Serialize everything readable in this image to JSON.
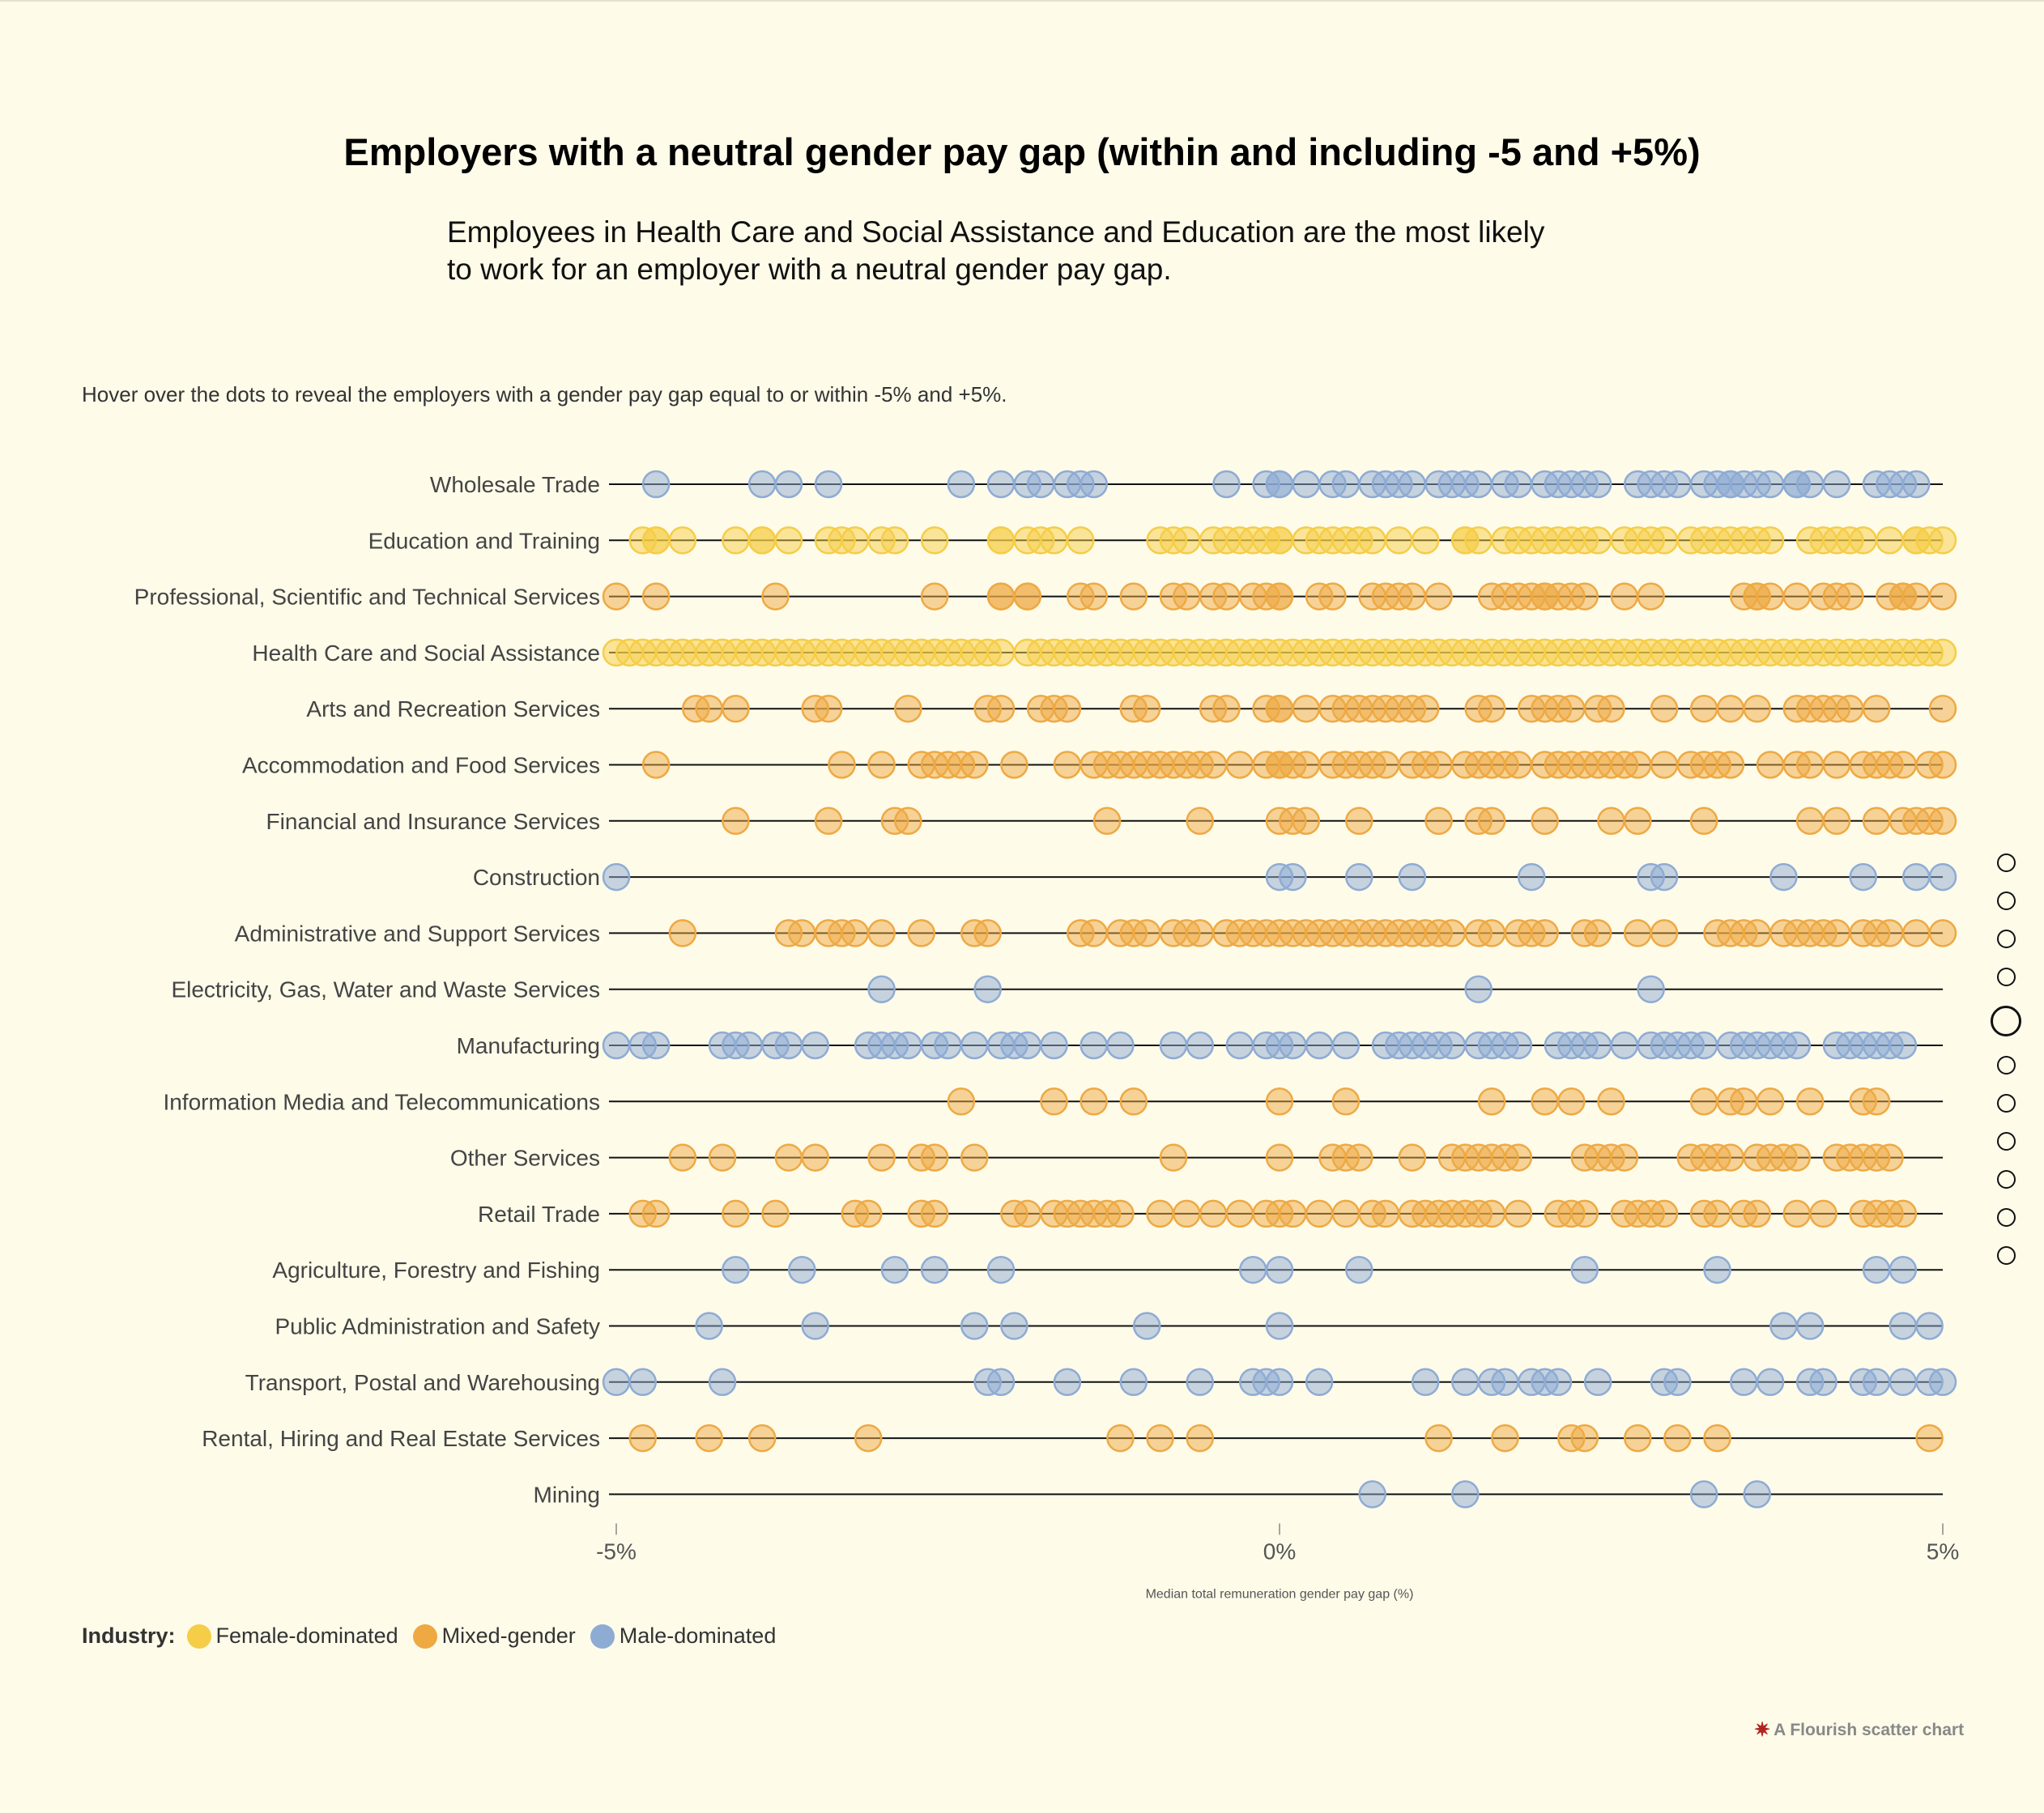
{
  "header": {
    "title": "Employers with a neutral gender pay gap (within and including -5 and +5%)",
    "subtitle_line1": "Employees in Health Care and Social Assistance and Education are the most likely",
    "subtitle_line2": "to work for an employer with a neutral gender pay gap.",
    "note": "Hover over the dots to reveal the employers with a gender pay gap equal to or within -5% and +5%."
  },
  "legend": {
    "title": "Industry:",
    "items": [
      {
        "label": "Female-dominated",
        "color": "#f5cd47"
      },
      {
        "label": "Mixed-gender",
        "color": "#eea943"
      },
      {
        "label": "Male-dominated",
        "color": "#8eabd4"
      }
    ]
  },
  "credit": {
    "icon": "flourish-logo-icon",
    "text": "A Flourish scatter chart"
  },
  "story_nav": {
    "count": 11,
    "active_index": 4
  },
  "chart_data": {
    "type": "scatter",
    "title": "Employers with a neutral gender pay gap (within and including -5 and +5%)",
    "xlabel": "Median total remuneration gender pay gap (%)",
    "ylabel": "",
    "xlim": [
      -5,
      5
    ],
    "xticks": [
      {
        "value": -5,
        "label": "-5%"
      },
      {
        "value": 0,
        "label": "0%"
      },
      {
        "value": 5,
        "label": "5%"
      }
    ],
    "grid": false,
    "legend_position": "bottom-left",
    "colors": {
      "Female-dominated": "#f5cd47",
      "Mixed-gender": "#eea943",
      "Male-dominated": "#8eabd4"
    },
    "rows": [
      {
        "industry": "Wholesale Trade",
        "group": "Male-dominated",
        "values": [
          -4.7,
          -3.9,
          -3.7,
          -3.4,
          -2.4,
          -2.1,
          -1.9,
          -1.8,
          -1.6,
          -1.5,
          -1.4,
          -0.4,
          -0.1,
          0.0,
          0.0,
          0.2,
          0.4,
          0.5,
          0.7,
          0.8,
          0.9,
          1.0,
          1.2,
          1.3,
          1.4,
          1.5,
          1.7,
          1.8,
          2.0,
          2.1,
          2.2,
          2.3,
          2.4,
          2.7,
          2.8,
          2.9,
          3.0,
          3.2,
          3.3,
          3.4,
          3.4,
          3.5,
          3.6,
          3.7,
          3.9,
          3.9,
          4.0,
          4.2,
          4.5,
          4.6,
          4.7,
          4.8
        ]
      },
      {
        "industry": "Education and Training",
        "group": "Female-dominated",
        "values": [
          -4.8,
          -4.7,
          -4.7,
          -4.5,
          -4.1,
          -3.9,
          -3.9,
          -3.7,
          -3.4,
          -3.3,
          -3.2,
          -3.0,
          -2.9,
          -2.6,
          -2.1,
          -2.1,
          -1.9,
          -1.8,
          -1.7,
          -1.5,
          -0.9,
          -0.8,
          -0.7,
          -0.5,
          -0.4,
          -0.3,
          -0.2,
          -0.1,
          0.0,
          0.0,
          0.2,
          0.3,
          0.4,
          0.5,
          0.6,
          0.7,
          0.9,
          1.1,
          1.4,
          1.4,
          1.5,
          1.7,
          1.8,
          1.9,
          2.0,
          2.1,
          2.2,
          2.3,
          2.4,
          2.6,
          2.7,
          2.8,
          2.9,
          3.1,
          3.2,
          3.3,
          3.4,
          3.5,
          3.6,
          3.7,
          4.0,
          4.1,
          4.2,
          4.3,
          4.4,
          4.6,
          4.8,
          4.8,
          4.9,
          5.0
        ]
      },
      {
        "industry": "Professional, Scientific and Technical Services",
        "group": "Mixed-gender",
        "values": [
          -5.0,
          -4.7,
          -3.8,
          -2.6,
          -2.1,
          -2.1,
          -1.9,
          -1.9,
          -1.5,
          -1.4,
          -1.1,
          -0.8,
          -0.7,
          -0.5,
          -0.4,
          -0.2,
          -0.1,
          0.0,
          0.0,
          0.3,
          0.4,
          0.7,
          0.8,
          0.9,
          1.0,
          1.2,
          1.6,
          1.7,
          1.8,
          1.9,
          2.0,
          2.0,
          2.1,
          2.2,
          2.3,
          2.6,
          2.8,
          3.5,
          3.6,
          3.6,
          3.7,
          3.9,
          4.1,
          4.2,
          4.3,
          4.6,
          4.7,
          4.7,
          4.8,
          5.0
        ]
      },
      {
        "industry": "Health Care and Social Assistance",
        "group": "Female-dominated",
        "values": [
          -5.0,
          -4.9,
          -4.8,
          -4.7,
          -4.6,
          -4.5,
          -4.4,
          -4.3,
          -4.2,
          -4.1,
          -4.0,
          -3.9,
          -3.8,
          -3.7,
          -3.6,
          -3.5,
          -3.4,
          -3.3,
          -3.2,
          -3.1,
          -3.0,
          -2.9,
          -2.8,
          -2.7,
          -2.6,
          -2.5,
          -2.4,
          -2.3,
          -2.2,
          -2.1,
          -1.9,
          -1.8,
          -1.7,
          -1.6,
          -1.5,
          -1.4,
          -1.3,
          -1.2,
          -1.1,
          -1.0,
          -0.9,
          -0.8,
          -0.7,
          -0.6,
          -0.5,
          -0.4,
          -0.3,
          -0.2,
          -0.1,
          0.0,
          0.1,
          0.2,
          0.3,
          0.4,
          0.5,
          0.6,
          0.7,
          0.8,
          0.9,
          1.0,
          1.1,
          1.2,
          1.3,
          1.4,
          1.5,
          1.6,
          1.7,
          1.8,
          1.9,
          2.0,
          2.1,
          2.2,
          2.3,
          2.4,
          2.5,
          2.6,
          2.7,
          2.8,
          2.9,
          3.0,
          3.1,
          3.2,
          3.3,
          3.4,
          3.5,
          3.6,
          3.7,
          3.8,
          3.9,
          4.0,
          4.1,
          4.2,
          4.3,
          4.4,
          4.5,
          4.6,
          4.7,
          4.8,
          4.9,
          5.0
        ]
      },
      {
        "industry": "Arts and Recreation Services",
        "group": "Mixed-gender",
        "values": [
          -4.4,
          -4.3,
          -4.1,
          -3.5,
          -3.4,
          -2.8,
          -2.2,
          -2.1,
          -1.8,
          -1.7,
          -1.6,
          -1.1,
          -1.0,
          -0.5,
          -0.4,
          -0.1,
          0.0,
          0.0,
          0.2,
          0.4,
          0.5,
          0.6,
          0.7,
          0.8,
          0.9,
          1.0,
          1.1,
          1.5,
          1.6,
          1.9,
          2.0,
          2.1,
          2.2,
          2.4,
          2.5,
          2.9,
          3.2,
          3.4,
          3.6,
          3.9,
          4.0,
          4.1,
          4.2,
          4.3,
          4.5,
          5.0
        ]
      },
      {
        "industry": "Accommodation and Food Services",
        "group": "Mixed-gender",
        "values": [
          -4.7,
          -3.3,
          -3.0,
          -2.7,
          -2.6,
          -2.5,
          -2.4,
          -2.3,
          -2.0,
          -1.6,
          -1.4,
          -1.3,
          -1.2,
          -1.1,
          -1.0,
          -0.9,
          -0.8,
          -0.7,
          -0.6,
          -0.5,
          -0.3,
          -0.1,
          0.0,
          0.0,
          0.1,
          0.2,
          0.4,
          0.5,
          0.6,
          0.7,
          0.8,
          1.0,
          1.1,
          1.2,
          1.4,
          1.5,
          1.6,
          1.7,
          1.8,
          2.0,
          2.1,
          2.2,
          2.3,
          2.4,
          2.5,
          2.6,
          2.7,
          2.9,
          3.1,
          3.2,
          3.3,
          3.4,
          3.7,
          3.9,
          4.0,
          4.2,
          4.4,
          4.5,
          4.6,
          4.7,
          4.9,
          5.0
        ]
      },
      {
        "industry": "Financial and Insurance Services",
        "group": "Mixed-gender",
        "values": [
          -4.1,
          -3.4,
          -2.9,
          -2.8,
          -1.3,
          -0.6,
          0.0,
          0.1,
          0.2,
          0.6,
          1.2,
          1.5,
          1.6,
          2.0,
          2.5,
          2.7,
          3.2,
          4.0,
          4.2,
          4.5,
          4.7,
          4.8,
          4.9,
          5.0
        ]
      },
      {
        "industry": "Construction",
        "group": "Male-dominated",
        "values": [
          -5.0,
          0.0,
          0.1,
          0.6,
          1.0,
          1.9,
          2.8,
          2.9,
          3.8,
          4.4,
          4.8,
          5.0
        ]
      },
      {
        "industry": "Administrative and Support Services",
        "group": "Mixed-gender",
        "values": [
          -4.5,
          -3.7,
          -3.6,
          -3.4,
          -3.3,
          -3.2,
          -3.0,
          -2.7,
          -2.3,
          -2.2,
          -1.5,
          -1.4,
          -1.2,
          -1.1,
          -1.0,
          -0.8,
          -0.7,
          -0.6,
          -0.4,
          -0.3,
          -0.2,
          -0.1,
          0.0,
          0.1,
          0.2,
          0.3,
          0.4,
          0.5,
          0.6,
          0.7,
          0.8,
          0.9,
          1.0,
          1.1,
          1.2,
          1.3,
          1.5,
          1.6,
          1.8,
          1.9,
          2.0,
          2.3,
          2.4,
          2.7,
          2.9,
          3.3,
          3.4,
          3.5,
          3.6,
          3.8,
          3.9,
          4.0,
          4.1,
          4.2,
          4.4,
          4.5,
          4.6,
          4.8,
          5.0
        ]
      },
      {
        "industry": "Electricity, Gas, Water and Waste Services",
        "group": "Male-dominated",
        "values": [
          -3.0,
          -2.2,
          1.5,
          2.8
        ]
      },
      {
        "industry": "Manufacturing",
        "group": "Male-dominated",
        "values": [
          -5.0,
          -4.8,
          -4.7,
          -4.2,
          -4.1,
          -4.0,
          -3.8,
          -3.7,
          -3.5,
          -3.1,
          -3.0,
          -2.9,
          -2.8,
          -2.6,
          -2.5,
          -2.3,
          -2.1,
          -2.0,
          -1.9,
          -1.7,
          -1.4,
          -1.2,
          -0.8,
          -0.6,
          -0.3,
          -0.1,
          0.0,
          0.1,
          0.3,
          0.5,
          0.8,
          0.9,
          1.0,
          1.1,
          1.2,
          1.3,
          1.5,
          1.6,
          1.7,
          1.8,
          2.1,
          2.2,
          2.3,
          2.4,
          2.6,
          2.8,
          2.9,
          3.0,
          3.1,
          3.2,
          3.4,
          3.5,
          3.6,
          3.7,
          3.8,
          3.9,
          4.2,
          4.3,
          4.4,
          4.5,
          4.6,
          4.7
        ]
      },
      {
        "industry": "Information Media and Telecommunications",
        "group": "Mixed-gender",
        "values": [
          -2.4,
          -1.7,
          -1.4,
          -1.1,
          0.0,
          0.5,
          1.6,
          2.0,
          2.2,
          2.5,
          3.2,
          3.4,
          3.5,
          3.7,
          4.0,
          4.4,
          4.5
        ]
      },
      {
        "industry": "Other Services",
        "group": "Mixed-gender",
        "values": [
          -4.5,
          -4.2,
          -3.7,
          -3.5,
          -3.0,
          -2.7,
          -2.6,
          -2.3,
          -0.8,
          0.0,
          0.4,
          0.5,
          0.6,
          1.0,
          1.3,
          1.4,
          1.5,
          1.6,
          1.7,
          1.8,
          2.3,
          2.4,
          2.5,
          2.6,
          3.1,
          3.2,
          3.3,
          3.4,
          3.6,
          3.7,
          3.8,
          3.9,
          4.2,
          4.3,
          4.4,
          4.5,
          4.6
        ]
      },
      {
        "industry": "Retail Trade",
        "group": "Mixed-gender",
        "values": [
          -4.8,
          -4.7,
          -4.1,
          -3.8,
          -3.2,
          -3.1,
          -2.7,
          -2.6,
          -2.0,
          -1.9,
          -1.7,
          -1.6,
          -1.5,
          -1.4,
          -1.3,
          -1.2,
          -0.9,
          -0.7,
          -0.5,
          -0.3,
          -0.1,
          0.0,
          0.1,
          0.3,
          0.5,
          0.7,
          0.8,
          1.0,
          1.1,
          1.2,
          1.3,
          1.4,
          1.5,
          1.6,
          1.8,
          2.1,
          2.2,
          2.3,
          2.6,
          2.7,
          2.8,
          2.9,
          3.2,
          3.3,
          3.5,
          3.6,
          3.9,
          4.1,
          4.4,
          4.5,
          4.6,
          4.7
        ]
      },
      {
        "industry": "Agriculture, Forestry and Fishing",
        "group": "Male-dominated",
        "values": [
          -4.1,
          -3.6,
          -2.9,
          -2.6,
          -2.1,
          -0.2,
          0.0,
          0.6,
          2.3,
          3.3,
          4.5,
          4.7
        ]
      },
      {
        "industry": "Public Administration and Safety",
        "group": "Male-dominated",
        "values": [
          -4.3,
          -3.5,
          -2.3,
          -2.0,
          -1.0,
          0.0,
          3.8,
          4.0,
          4.7,
          4.9
        ]
      },
      {
        "industry": "Transport, Postal and Warehousing",
        "group": "Male-dominated",
        "values": [
          -5.0,
          -4.8,
          -4.2,
          -2.2,
          -2.1,
          -1.6,
          -1.1,
          -0.6,
          -0.2,
          -0.1,
          0.0,
          0.3,
          1.1,
          1.4,
          1.6,
          1.7,
          1.9,
          2.0,
          2.1,
          2.4,
          2.9,
          3.0,
          3.5,
          3.7,
          4.0,
          4.1,
          4.4,
          4.5,
          4.7,
          4.9,
          5.0
        ]
      },
      {
        "industry": "Rental, Hiring and Real Estate Services",
        "group": "Mixed-gender",
        "values": [
          -4.8,
          -4.3,
          -3.9,
          -3.1,
          -1.2,
          -0.9,
          -0.6,
          1.2,
          1.7,
          2.2,
          2.3,
          2.7,
          3.0,
          3.3,
          4.9
        ]
      },
      {
        "industry": "Mining",
        "group": "Male-dominated",
        "values": [
          0.7,
          1.4,
          3.2,
          3.6
        ]
      }
    ]
  }
}
